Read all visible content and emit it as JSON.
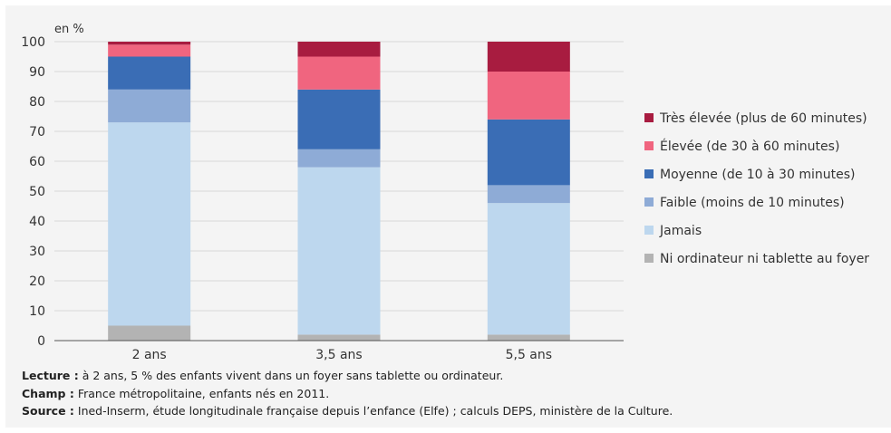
{
  "chart_data": {
    "type": "bar",
    "stacked": true,
    "unit_label": "en %",
    "ylim": [
      0,
      100
    ],
    "yticks": [
      0,
      10,
      20,
      30,
      40,
      50,
      60,
      70,
      80,
      90,
      100
    ],
    "grid": true,
    "legend_position": "right",
    "categories": [
      "2 ans",
      "3,5 ans",
      "5,5 ans"
    ],
    "series": [
      {
        "name": "Ni ordinateur ni tablette au foyer",
        "color": "#b3b3b3",
        "values": [
          5,
          2,
          2
        ]
      },
      {
        "name": "Jamais",
        "color": "#bdd7ee",
        "values": [
          68,
          56,
          44
        ]
      },
      {
        "name": "Faible (moins de 10 minutes)",
        "color": "#8eabd6",
        "values": [
          11,
          6,
          6
        ]
      },
      {
        "name": "Moyenne (de 10 à 30 minutes)",
        "color": "#3a6db5",
        "values": [
          11,
          20,
          22
        ]
      },
      {
        "name": "Élevée (de 30 à 60 minutes)",
        "color": "#f0657f",
        "values": [
          4,
          11,
          16
        ]
      },
      {
        "name": "Très élevée (plus de 60 minutes)",
        "color": "#a81c40",
        "values": [
          1,
          5,
          10
        ]
      }
    ]
  },
  "notes": {
    "lecture_label": "Lecture :",
    "lecture_text": " à 2 ans, 5 % des enfants vivent dans un foyer sans tablette ou ordinateur.",
    "champ_label": "Champ :",
    "champ_text": " France métropolitaine, enfants nés en 2011.",
    "source_label": "Source :",
    "source_text": " Ined-Inserm, étude longitudinale française depuis l’enfance (Elfe) ; calculs DEPS, ministère de la Culture."
  }
}
